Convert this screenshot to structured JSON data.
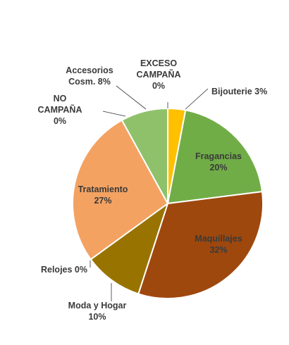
{
  "chart_data": {
    "type": "pie",
    "title": "",
    "slices": [
      {
        "label": "Bijouterie",
        "value": 3,
        "display": [
          "Bijouterie 3%"
        ],
        "color": "#FFC000"
      },
      {
        "label": "Fragancias",
        "value": 20,
        "display": [
          "Fragancias",
          "20%"
        ],
        "color": "#70AD47"
      },
      {
        "label": "Maquillajes",
        "value": 32,
        "display": [
          "Maquillajes",
          "32%"
        ],
        "color": "#9E480E"
      },
      {
        "label": "Moda y Hogar",
        "value": 10,
        "display": [
          "Moda y Hogar",
          "10%"
        ],
        "color": "#997300"
      },
      {
        "label": "Relojes",
        "value": 0,
        "display": [
          "Relojes 0%"
        ],
        "color": "#264478"
      },
      {
        "label": "Tratamiento",
        "value": 27,
        "display": [
          "Tratamiento",
          "27%"
        ],
        "color": "#F4A261"
      },
      {
        "label": "NO CAMPAÑA",
        "value": 0,
        "display": [
          "NO",
          "CAMPAÑA",
          "0%"
        ],
        "color": "#5B9BD5"
      },
      {
        "label": "Accesorios Cosm.",
        "value": 8,
        "display": [
          "Accesorios",
          "Cosm. 8%"
        ],
        "color": "#8FC16A"
      },
      {
        "label": "EXCESO CAMPAÑA",
        "value": 0,
        "display": [
          "EXCESO",
          "CAMPAÑA",
          "0%"
        ],
        "color": "#A5A5A5"
      }
    ],
    "legend": "none",
    "label_position": "mixed (inside for large slices, outside with leader lines for small)"
  }
}
